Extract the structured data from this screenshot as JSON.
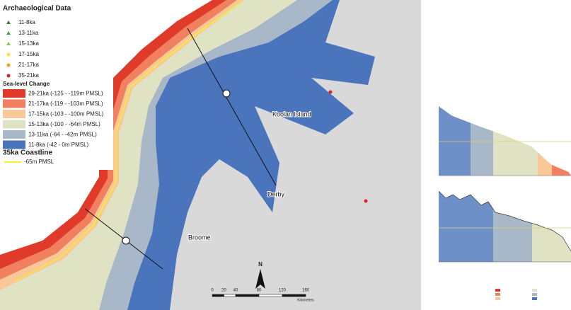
{
  "legend": {
    "archaeological_title": "Archaeological Data",
    "archaeological_items": [
      "11-8ka",
      "13-11ka",
      "15-13ka",
      "17-15ka",
      "21-17ka",
      "35-21ka"
    ],
    "sea_level_title": "Sea-level Change",
    "sea_level_items": [
      "29-21ka (-125 - -119m PMSL)",
      "21-17ka (-119 - -103m PMSL)",
      "17-15ka (-103 - -100m PMSL)",
      "15-13ka (-100 - -64m PMSL)",
      "13-11ka (-64 - -42m PMSL)",
      "11-8ka (-42 - 0m PMSL)"
    ],
    "coastline_title": "35ka Coastline",
    "coastline_item": "-65m PMSL"
  },
  "places": [
    "Koolan Island",
    "Derby",
    "Broome"
  ],
  "north": "N",
  "scale_bar": {
    "ticks": [
      0,
      20,
      40,
      80,
      120,
      160
    ],
    "unit": "Kilometers"
  }
}
